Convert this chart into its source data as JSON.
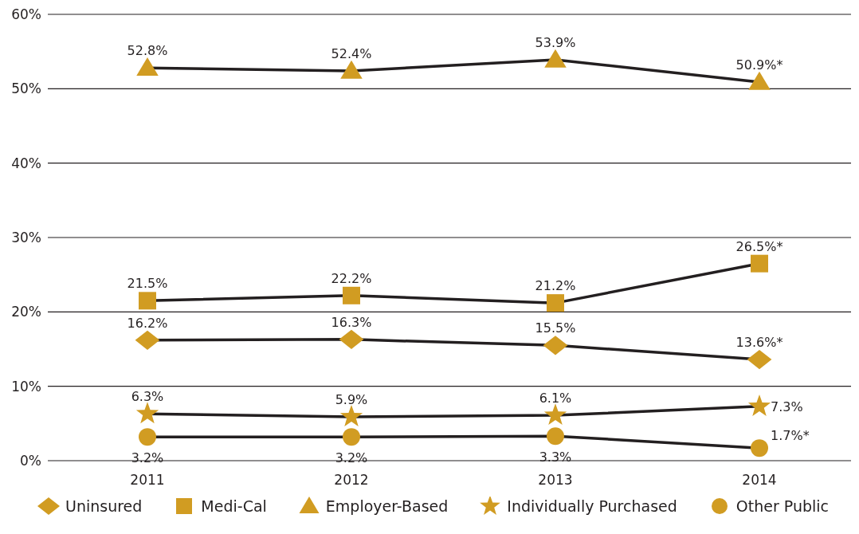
{
  "chart_data": {
    "type": "line",
    "categories": [
      "2011",
      "2012",
      "2013",
      "2014"
    ],
    "series": [
      {
        "name": "Uninsured",
        "color": "#d19c22",
        "marker": "diamond",
        "values": [
          16.2,
          16.3,
          15.5,
          13.6
        ],
        "value_labels": [
          "16.2%",
          "16.3%",
          "15.5%",
          "13.6%*"
        ]
      },
      {
        "name": "Medi-Cal",
        "color": "#d19c22",
        "marker": "square",
        "values": [
          21.5,
          22.2,
          21.2,
          26.5
        ],
        "value_labels": [
          "21.5%",
          "22.2%",
          "21.2%",
          "26.5%*"
        ]
      },
      {
        "name": "Employer-Based",
        "color": "#d19c22",
        "marker": "triangle",
        "values": [
          52.8,
          52.4,
          53.9,
          50.9
        ],
        "value_labels": [
          "52.8%",
          "52.4%",
          "53.9%",
          "50.9%*"
        ]
      },
      {
        "name": "Individually Purchased",
        "color": "#d19c22",
        "marker": "star",
        "values": [
          6.3,
          5.9,
          6.1,
          7.3
        ],
        "value_labels": [
          "6.3%",
          "5.9%",
          "6.1%",
          "7.3%"
        ]
      },
      {
        "name": "Other Public",
        "color": "#d19c22",
        "marker": "circle",
        "values": [
          3.2,
          3.2,
          3.3,
          1.7
        ],
        "value_labels": [
          "3.2%",
          "3.2%",
          "3.3%",
          "1.7%*"
        ]
      }
    ],
    "ylim": [
      0,
      60
    ],
    "yticks": [
      {
        "value": 0,
        "label": "0%"
      },
      {
        "value": 10,
        "label": "10%"
      },
      {
        "value": 20,
        "label": "20%"
      },
      {
        "value": 30,
        "label": "30%"
      },
      {
        "value": 40,
        "label": "40%"
      },
      {
        "value": 50,
        "label": "50%"
      },
      {
        "value": 60,
        "label": "60%"
      }
    ],
    "grid": "y",
    "legend": "bottom",
    "line_style": "solid"
  }
}
